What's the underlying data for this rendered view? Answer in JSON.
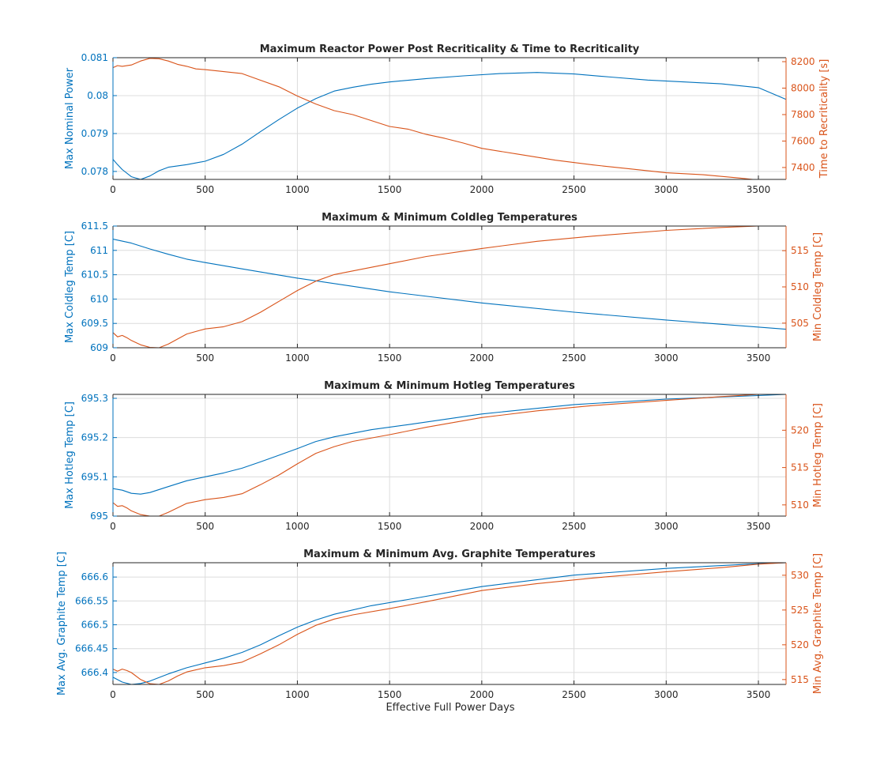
{
  "colors": {
    "left": "#0072BD",
    "right": "#D95319",
    "axis": "#262626",
    "grid": "#dcdcdc"
  },
  "figure": {
    "xlabel": "Effective Full Power Days"
  },
  "chart_data": [
    {
      "type": "line",
      "title": "Maximum Reactor Power Post Recriticality & Time to Recriticality",
      "xlim": [
        0,
        3650
      ],
      "xticks": [
        0,
        500,
        1000,
        1500,
        2000,
        2500,
        3000,
        3500
      ],
      "xtick_labels": [
        "0",
        "500",
        "1000",
        "1500",
        "2000",
        "2500",
        "3000",
        "3500"
      ],
      "ylabel_left": "Max Nominal Power",
      "ylim_left": [
        0.07779,
        0.081
      ],
      "yticks_left": [
        0.078,
        0.079,
        0.08,
        0.081
      ],
      "ytick_labels_left": [
        "0.078",
        "0.079",
        "0.08",
        "0.081"
      ],
      "ylabel_right": "Time to Recriticality [s]",
      "ylim_right": [
        7310,
        8230
      ],
      "yticks_right": [
        7400,
        7600,
        7800,
        8000,
        8200
      ],
      "ytick_labels_right": [
        "7400",
        "7600",
        "7800",
        "8000",
        "8200"
      ],
      "series": [
        {
          "name": "Max Nominal Power",
          "axis": "left",
          "x": [
            0,
            25,
            50,
            100,
            150,
            200,
            250,
            300,
            400,
            500,
            600,
            700,
            800,
            900,
            1000,
            1100,
            1200,
            1300,
            1400,
            1500,
            1700,
            1900,
            2100,
            2300,
            2500,
            2700,
            2900,
            3100,
            3300,
            3500,
            3650
          ],
          "values": [
            0.07832,
            0.07818,
            0.07805,
            0.07786,
            0.07779,
            0.07788,
            0.07802,
            0.07811,
            0.07818,
            0.07827,
            0.07845,
            0.07872,
            0.07905,
            0.07937,
            0.07967,
            0.07992,
            0.08012,
            0.08022,
            0.0803,
            0.08036,
            0.08045,
            0.08052,
            0.08058,
            0.08061,
            0.08057,
            0.08049,
            0.08041,
            0.08036,
            0.08031,
            0.08021,
            0.0799
          ]
        },
        {
          "name": "Time to Recriticality",
          "axis": "right",
          "x": [
            0,
            25,
            50,
            100,
            150,
            200,
            250,
            300,
            350,
            400,
            450,
            500,
            600,
            700,
            800,
            900,
            1000,
            1100,
            1200,
            1300,
            1400,
            1500,
            1600,
            1700,
            1800,
            1900,
            2000,
            2200,
            2400,
            2600,
            2800,
            3000,
            3200,
            3400,
            3470
          ],
          "values": [
            8155,
            8170,
            8165,
            8175,
            8205,
            8225,
            8222,
            8205,
            8180,
            8165,
            8145,
            8140,
            8125,
            8110,
            8060,
            8010,
            7940,
            7880,
            7830,
            7800,
            7755,
            7710,
            7690,
            7650,
            7620,
            7585,
            7545,
            7500,
            7455,
            7420,
            7390,
            7360,
            7345,
            7320,
            7310
          ]
        }
      ]
    },
    {
      "type": "line",
      "title": "Maximum & Minimum Coldleg Temperatures",
      "xlim": [
        0,
        3650
      ],
      "xticks": [
        0,
        500,
        1000,
        1500,
        2000,
        2500,
        3000,
        3500
      ],
      "xtick_labels": [
        "0",
        "500",
        "1000",
        "1500",
        "2000",
        "2500",
        "3000",
        "3500"
      ],
      "ylabel_left": "Max Coldleg Temp [C]",
      "ylim_left": [
        609,
        611.5
      ],
      "yticks_left": [
        609,
        609.5,
        610,
        610.5,
        611,
        611.5
      ],
      "ytick_labels_left": [
        "609",
        "609.5",
        "610",
        "610.5",
        "611",
        "611.5"
      ],
      "ylabel_right": "Min Coldleg Temp [C]",
      "ylim_right": [
        501.6,
        518.4
      ],
      "yticks_right": [
        505,
        510,
        515
      ],
      "ytick_labels_right": [
        "505",
        "510",
        "515"
      ],
      "series": [
        {
          "name": "Max Coldleg Temp",
          "axis": "left",
          "x": [
            0,
            100,
            200,
            300,
            400,
            500,
            700,
            1000,
            1500,
            2000,
            2500,
            3000,
            3650
          ],
          "values": [
            611.23,
            611.15,
            611.03,
            610.92,
            610.82,
            610.75,
            610.62,
            610.43,
            610.15,
            609.92,
            609.73,
            609.57,
            609.38
          ]
        },
        {
          "name": "Min Coldleg Temp",
          "axis": "right",
          "x": [
            0,
            25,
            50,
            75,
            100,
            150,
            200,
            250,
            300,
            400,
            500,
            600,
            700,
            800,
            900,
            1000,
            1100,
            1200,
            1300,
            1500,
            1700,
            2000,
            2300,
            2600,
            3000,
            3300,
            3500,
            3650
          ],
          "values": [
            503.7,
            503.1,
            503.3,
            503.0,
            502.6,
            502.0,
            501.65,
            501.6,
            502.1,
            503.5,
            504.2,
            504.5,
            505.2,
            506.5,
            508.0,
            509.5,
            510.8,
            511.7,
            512.2,
            513.2,
            514.2,
            515.3,
            516.3,
            517.0,
            517.8,
            518.2,
            518.4,
            518.4
          ]
        }
      ]
    },
    {
      "type": "line",
      "title": "Maximum & Minimum Hotleg Temperatures",
      "xlim": [
        0,
        3650
      ],
      "xticks": [
        0,
        500,
        1000,
        1500,
        2000,
        2500,
        3000,
        3500
      ],
      "xtick_labels": [
        "0",
        "500",
        "1000",
        "1500",
        "2000",
        "2500",
        "3000",
        "3500"
      ],
      "ylabel_left": "Max Hotleg Temp [C]",
      "ylim_left": [
        695,
        695.31
      ],
      "yticks_left": [
        695,
        695.1,
        695.2,
        695.3
      ],
      "ytick_labels_left": [
        "695",
        "695.1",
        "695.2",
        "695.3"
      ],
      "ylabel_right": "Min Hotleg Temp [C]",
      "ylim_right": [
        508.5,
        524.8
      ],
      "yticks_right": [
        510,
        515,
        520
      ],
      "ytick_labels_right": [
        "510",
        "515",
        "520"
      ],
      "series": [
        {
          "name": "Max Hotleg Temp",
          "axis": "left",
          "x": [
            0,
            50,
            100,
            150,
            200,
            300,
            400,
            500,
            600,
            700,
            800,
            900,
            1000,
            1100,
            1200,
            1400,
            1600,
            2000,
            2500,
            3000,
            3500,
            3650
          ],
          "values": [
            695.07,
            695.066,
            695.058,
            695.056,
            695.06,
            695.075,
            695.09,
            695.1,
            695.11,
            695.122,
            695.138,
            695.155,
            695.172,
            695.19,
            695.202,
            695.22,
            695.233,
            695.26,
            695.284,
            695.298,
            695.307,
            695.31
          ]
        },
        {
          "name": "Min Hotleg Temp",
          "axis": "right",
          "x": [
            0,
            25,
            50,
            75,
            100,
            150,
            200,
            250,
            300,
            400,
            500,
            600,
            700,
            800,
            900,
            1000,
            1100,
            1200,
            1300,
            1500,
            1700,
            2000,
            2300,
            2600,
            3000,
            3300,
            3500,
            3650
          ],
          "values": [
            510.3,
            509.8,
            509.9,
            509.6,
            509.2,
            508.7,
            508.5,
            508.5,
            509.0,
            510.2,
            510.7,
            511.0,
            511.5,
            512.7,
            514.0,
            515.5,
            516.9,
            517.8,
            518.5,
            519.4,
            520.4,
            521.7,
            522.6,
            523.3,
            524.0,
            524.5,
            524.8,
            524.8
          ]
        }
      ]
    },
    {
      "type": "line",
      "title": "Maximum & Minimum Avg. Graphite Temperatures",
      "xlim": [
        0,
        3650
      ],
      "xticks": [
        0,
        500,
        1000,
        1500,
        2000,
        2500,
        3000,
        3500
      ],
      "xtick_labels": [
        "0",
        "500",
        "1000",
        "1500",
        "2000",
        "2500",
        "3000",
        "3500"
      ],
      "ylabel_left": "Max Avg. Graphite Temp [C]",
      "ylim_left": [
        666.375,
        666.63
      ],
      "yticks_left": [
        666.4,
        666.45,
        666.5,
        666.55,
        666.6
      ],
      "ytick_labels_left": [
        "666.4",
        "666.45",
        "666.5",
        "666.55",
        "666.6"
      ],
      "ylabel_right": "Min Avg. Graphite Temp [C]",
      "ylim_right": [
        514.3,
        531.8
      ],
      "yticks_right": [
        515,
        520,
        525,
        530
      ],
      "ytick_labels_right": [
        "515",
        "520",
        "525",
        "530"
      ],
      "series": [
        {
          "name": "Max Avg. Graphite Temp",
          "axis": "left",
          "x": [
            0,
            50,
            100,
            150,
            200,
            300,
            400,
            500,
            600,
            700,
            800,
            900,
            1000,
            1100,
            1200,
            1400,
            1600,
            2000,
            2500,
            3000,
            3500,
            3650
          ],
          "values": [
            666.39,
            666.38,
            666.375,
            666.377,
            666.382,
            666.397,
            666.41,
            666.42,
            666.43,
            666.442,
            666.458,
            666.477,
            666.495,
            666.51,
            666.522,
            666.54,
            666.553,
            666.58,
            666.604,
            666.618,
            666.628,
            666.63
          ]
        },
        {
          "name": "Min Avg. Graphite Temp",
          "axis": "right",
          "x": [
            0,
            25,
            50,
            75,
            100,
            150,
            200,
            250,
            300,
            350,
            400,
            500,
            600,
            700,
            800,
            900,
            1000,
            1100,
            1200,
            1300,
            1500,
            1700,
            2000,
            2300,
            2600,
            3000,
            3300,
            3500,
            3650
          ],
          "values": [
            516.5,
            516.2,
            516.5,
            516.3,
            516.0,
            515.0,
            514.4,
            514.3,
            514.8,
            515.5,
            516.1,
            516.7,
            517.0,
            517.5,
            518.7,
            520.0,
            521.5,
            522.8,
            523.7,
            524.3,
            525.2,
            526.2,
            527.8,
            528.8,
            529.6,
            530.5,
            531.1,
            531.6,
            531.8
          ]
        }
      ]
    }
  ]
}
